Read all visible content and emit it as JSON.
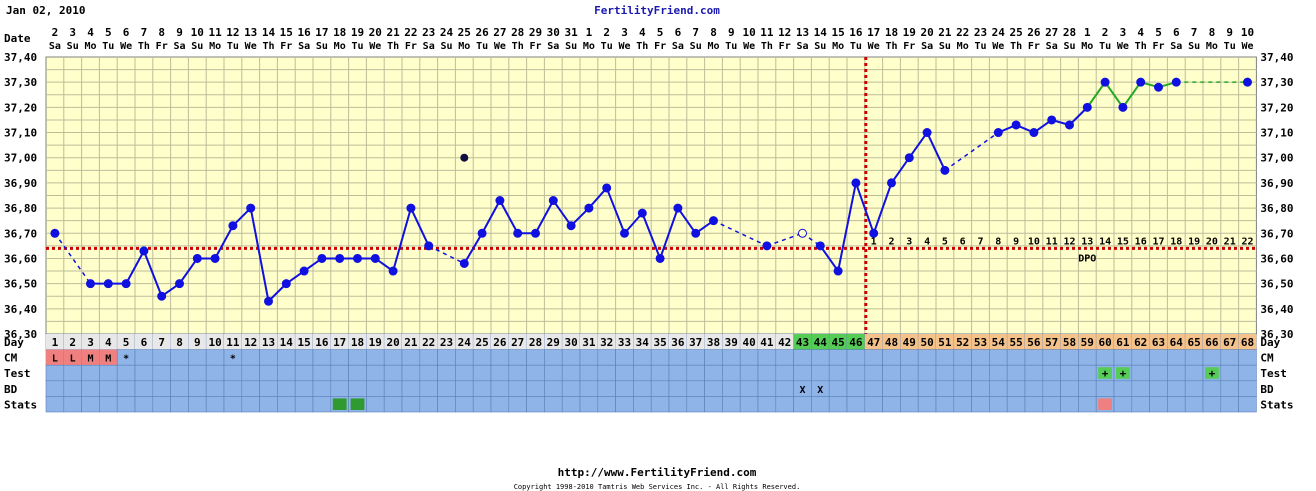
{
  "header": {
    "start_date": "Jan 02, 2010",
    "site": "FertilityFriend.com"
  },
  "footer": {
    "url": "http://www.FertilityFriend.com",
    "copyright": "Copyright 1998-2010 Tamtris Web Services Inc. - All Rights Reserved."
  },
  "colors": {
    "background": "#ffffcc",
    "grid": "#bdbd9a",
    "temp_line": "#1010e0",
    "post_line": "#22aa22",
    "coverline": "#cc0000",
    "row_blue": "#8fb5e8",
    "day_pre": "#e8e8e8",
    "day_fertile": "#55cc55",
    "day_luteal": "#f5c28a"
  },
  "chart_data": {
    "type": "line",
    "title": "",
    "xlabel": "Day",
    "ylabel": "",
    "ylim": [
      36.3,
      37.4
    ],
    "yticks": [
      "37,40",
      "37,30",
      "37,20",
      "37,10",
      "37,00",
      "36,90",
      "36,80",
      "36,70",
      "36,60",
      "36,50",
      "36,40",
      "36,30"
    ],
    "date_label": "Date",
    "dates": [
      "2",
      "3",
      "4",
      "5",
      "6",
      "7",
      "8",
      "9",
      "10",
      "11",
      "12",
      "13",
      "14",
      "15",
      "16",
      "17",
      "18",
      "19",
      "20",
      "21",
      "22",
      "23",
      "24",
      "25",
      "26",
      "27",
      "28",
      "29",
      "30",
      "31",
      "1",
      "2",
      "3",
      "4",
      "5",
      "6",
      "7",
      "8",
      "9",
      "10",
      "11",
      "12",
      "13",
      "14",
      "15",
      "16",
      "17",
      "18",
      "19",
      "20",
      "21",
      "22",
      "23",
      "24",
      "25",
      "26",
      "27",
      "28",
      "1",
      "2",
      "3",
      "4",
      "5",
      "6",
      "7",
      "8",
      "9",
      "10"
    ],
    "weekdays": [
      "Sa",
      "Su",
      "Mo",
      "Tu",
      "We",
      "Th",
      "Fr",
      "Sa",
      "Su",
      "Mo",
      "Tu",
      "We",
      "Th",
      "Fr",
      "Sa",
      "Su",
      "Mo",
      "Tu",
      "We",
      "Th",
      "Fr",
      "Sa",
      "Su",
      "Mo",
      "Tu",
      "We",
      "Th",
      "Fr",
      "Sa",
      "Su",
      "Mo",
      "Tu",
      "We",
      "Th",
      "Fr",
      "Sa",
      "Su",
      "Mo",
      "Tu",
      "We",
      "Th",
      "Fr",
      "Sa",
      "Su",
      "Mo",
      "Tu",
      "We",
      "Th",
      "Fr",
      "Sa",
      "Su",
      "Mo",
      "Tu",
      "We",
      "Th",
      "Fr",
      "Sa",
      "Su",
      "Mo",
      "Tu",
      "We",
      "Th",
      "Fr",
      "Sa",
      "Su",
      "Mo",
      "Tu",
      "We"
    ],
    "cycle_days": [
      1,
      2,
      3,
      4,
      5,
      6,
      7,
      8,
      9,
      10,
      11,
      12,
      13,
      14,
      15,
      16,
      17,
      18,
      19,
      20,
      21,
      22,
      23,
      24,
      25,
      26,
      27,
      28,
      29,
      30,
      31,
      32,
      33,
      34,
      35,
      36,
      37,
      38,
      39,
      40,
      41,
      42,
      43,
      44,
      45,
      46,
      47,
      48,
      49,
      50,
      51,
      52,
      53,
      54,
      55,
      56,
      57,
      58,
      59,
      60,
      61,
      62,
      63,
      64,
      65,
      66,
      67,
      68
    ],
    "temps": [
      36.7,
      null,
      36.5,
      36.5,
      36.5,
      36.63,
      36.45,
      36.5,
      36.6,
      36.6,
      36.73,
      36.8,
      36.43,
      36.5,
      36.55,
      36.6,
      36.6,
      36.6,
      36.6,
      36.55,
      36.8,
      36.65,
      null,
      36.58,
      36.7,
      36.83,
      36.7,
      36.7,
      36.83,
      36.73,
      36.8,
      36.88,
      36.7,
      36.78,
      36.6,
      36.8,
      36.7,
      36.75,
      null,
      null,
      36.65,
      null,
      36.7,
      36.65,
      36.55,
      36.9,
      36.7,
      36.9,
      37.0,
      37.1,
      36.95,
      null,
      null,
      37.1,
      37.13,
      37.1,
      37.15,
      37.13,
      37.2,
      37.3,
      37.2,
      37.3,
      37.28,
      37.3,
      null,
      null,
      null,
      37.3
    ],
    "open_points": [
      43
    ],
    "outlier_points": [
      {
        "day": 24,
        "value": 37.0
      }
    ],
    "coverline": 36.64,
    "ovulation_day": 46,
    "post_line_from_day": 59,
    "dpo_label": "DPO",
    "dpo_values": [
      "1",
      "2",
      "3",
      "4",
      "5",
      "6",
      "7",
      "8",
      "9",
      "10",
      "11",
      "12",
      "13",
      "14",
      "15",
      "16",
      "17",
      "18",
      "19",
      "20",
      "21",
      "22"
    ],
    "day_color_groups": {
      "pre_until": 42,
      "fertile_from": 43,
      "fertile_to": 46
    },
    "row_labels": [
      "Day",
      "CM",
      "Test",
      "BD",
      "Stats"
    ],
    "cm": [
      {
        "day": 1,
        "text": "L"
      },
      {
        "day": 2,
        "text": "L"
      },
      {
        "day": 3,
        "text": "M"
      },
      {
        "day": 4,
        "text": "M"
      },
      {
        "day": 5,
        "text": "*"
      },
      {
        "day": 11,
        "text": "*"
      }
    ],
    "cm_pink_days": [
      1,
      2,
      3,
      4
    ],
    "test": [
      {
        "day": 60,
        "text": "+"
      },
      {
        "day": 61,
        "text": "+"
      },
      {
        "day": 66,
        "text": "+"
      }
    ],
    "bd": [
      {
        "day": 43,
        "text": "X"
      },
      {
        "day": 44,
        "text": "X"
      }
    ],
    "stats_green_days": [
      17,
      18
    ],
    "stats_pink_days": [
      60
    ]
  }
}
